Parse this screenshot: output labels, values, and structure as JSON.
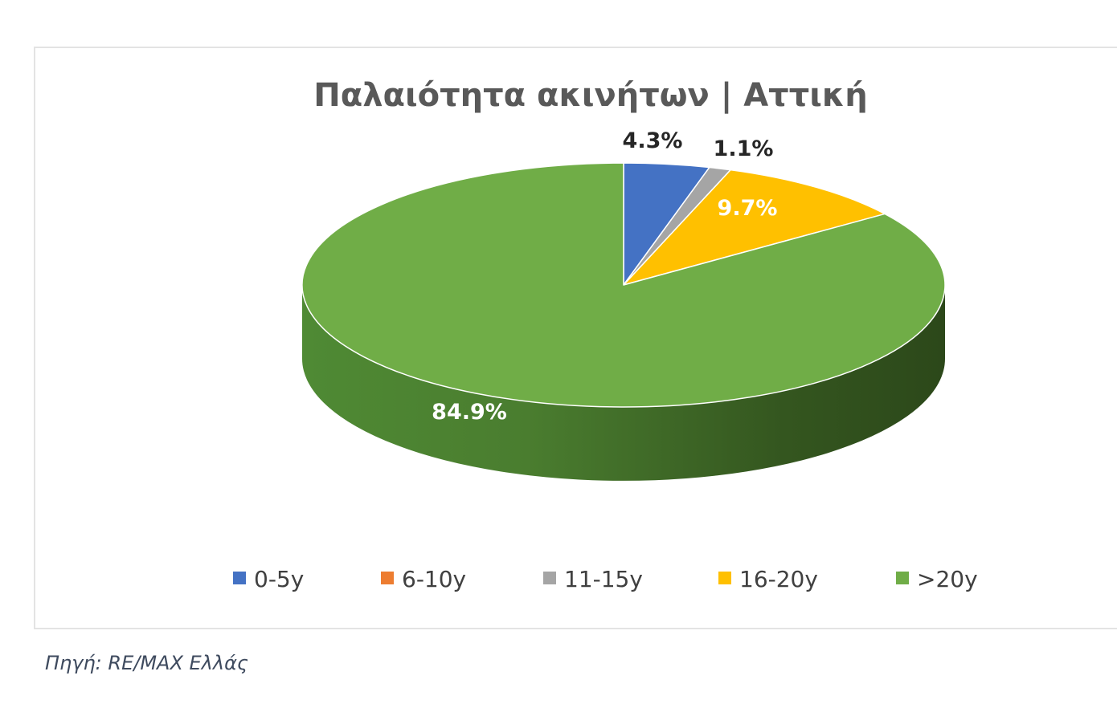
{
  "chart_data": {
    "type": "pie",
    "title": "Παλαιότητα ακινήτων | Αττική",
    "style": "3d",
    "legend_position": "bottom",
    "slices": [
      {
        "label": "0-5y",
        "value": 4.3,
        "display": "4.3%",
        "color": "#4472C4"
      },
      {
        "label": "6-10y",
        "value": 0.0,
        "display": "",
        "color": "#ED7D31"
      },
      {
        "label": "11-15y",
        "value": 1.1,
        "display": "1.1%",
        "color": "#A5A5A5"
      },
      {
        "label": "16-20y",
        "value": 9.7,
        "display": "9.7%",
        "color": "#FFC000"
      },
      {
        "label": ">20y",
        "value": 84.9,
        "display": "84.9%",
        "color": "#70AD47"
      }
    ]
  },
  "source_note": "Πηγή: RE/MAX Ελλάς"
}
